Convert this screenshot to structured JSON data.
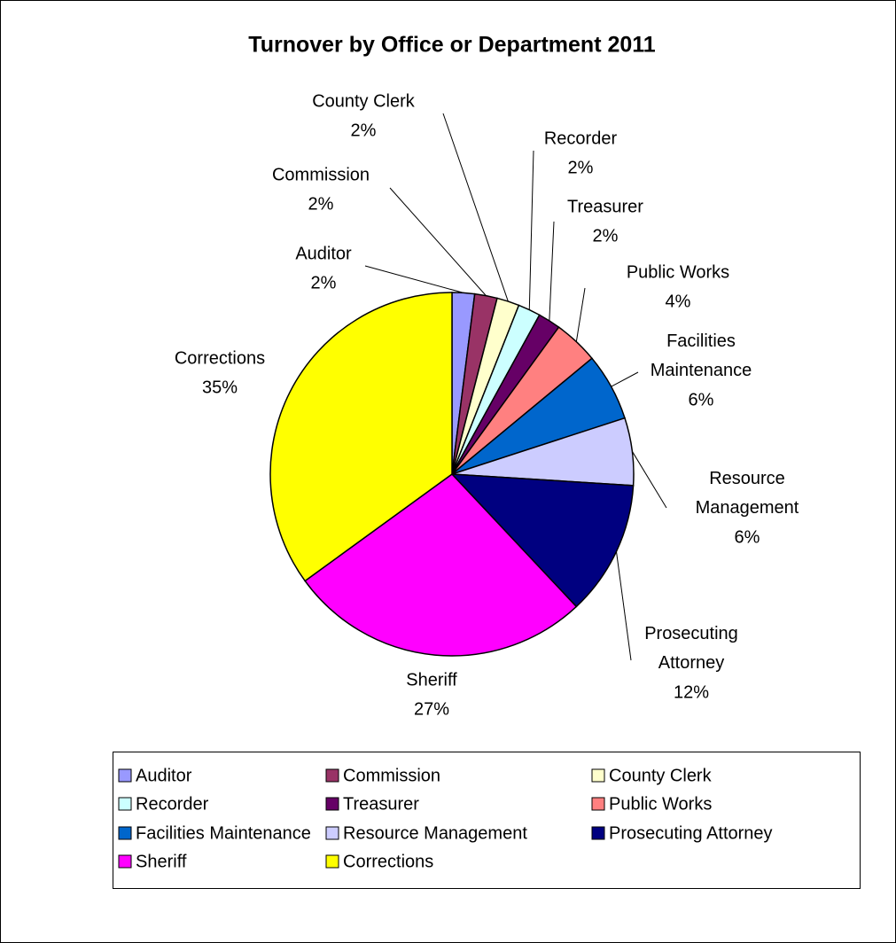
{
  "chart_data": {
    "type": "pie",
    "title": "Turnover by Office or Department 2011",
    "categories": [
      "Auditor",
      "Commission",
      "County Clerk",
      "Recorder",
      "Treasurer",
      "Public Works",
      "Facilities Maintenance",
      "Resource Management",
      "Prosecuting Attorney",
      "Sheriff",
      "Corrections"
    ],
    "values": [
      2,
      2,
      2,
      2,
      2,
      4,
      6,
      6,
      12,
      27,
      35
    ],
    "value_labels": [
      "2%",
      "2%",
      "2%",
      "2%",
      "2%",
      "4%",
      "6%",
      "6%",
      "12%",
      "27%",
      "35%"
    ],
    "colors": [
      "#9999ff",
      "#993366",
      "#ffffcc",
      "#ccffff",
      "#660066",
      "#ff8080",
      "#0066cc",
      "#ccccff",
      "#000080",
      "#ff00ff",
      "#ffff00"
    ],
    "legend": "bottom"
  }
}
